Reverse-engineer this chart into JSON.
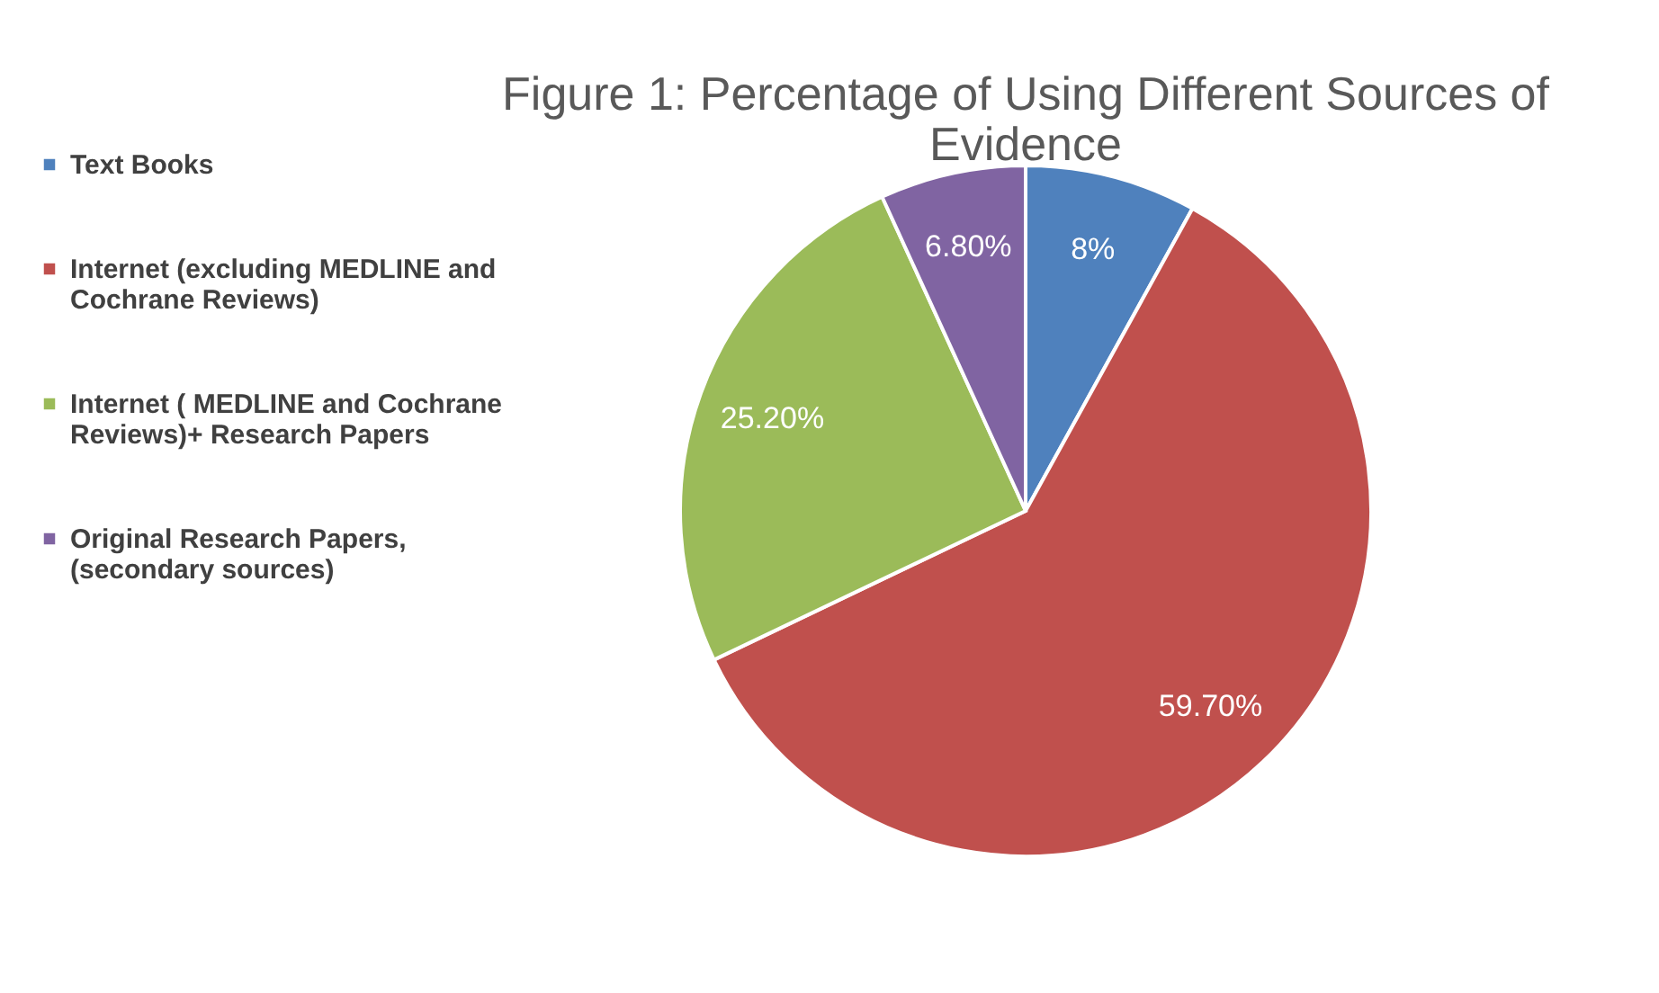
{
  "chart_data": {
    "type": "pie",
    "title": "Figure 1: Percentage of Using Different Sources of Evidence",
    "categories": [
      "Text Books",
      "Internet (excluding MEDLINE and Cochrane Reviews)",
      "Internet ( MEDLINE and Cochrane Reviews)+ Research Papers",
      "Original Research Papers, (secondary sources)"
    ],
    "values": [
      8,
      59.7,
      25.2,
      6.8
    ],
    "colors": [
      "#4f81bd",
      "#c0504d",
      "#9bbb59",
      "#8064a2"
    ],
    "value_labels": [
      "8%",
      "59.70%",
      "25.20%",
      "6.80%"
    ],
    "legend": "left"
  }
}
